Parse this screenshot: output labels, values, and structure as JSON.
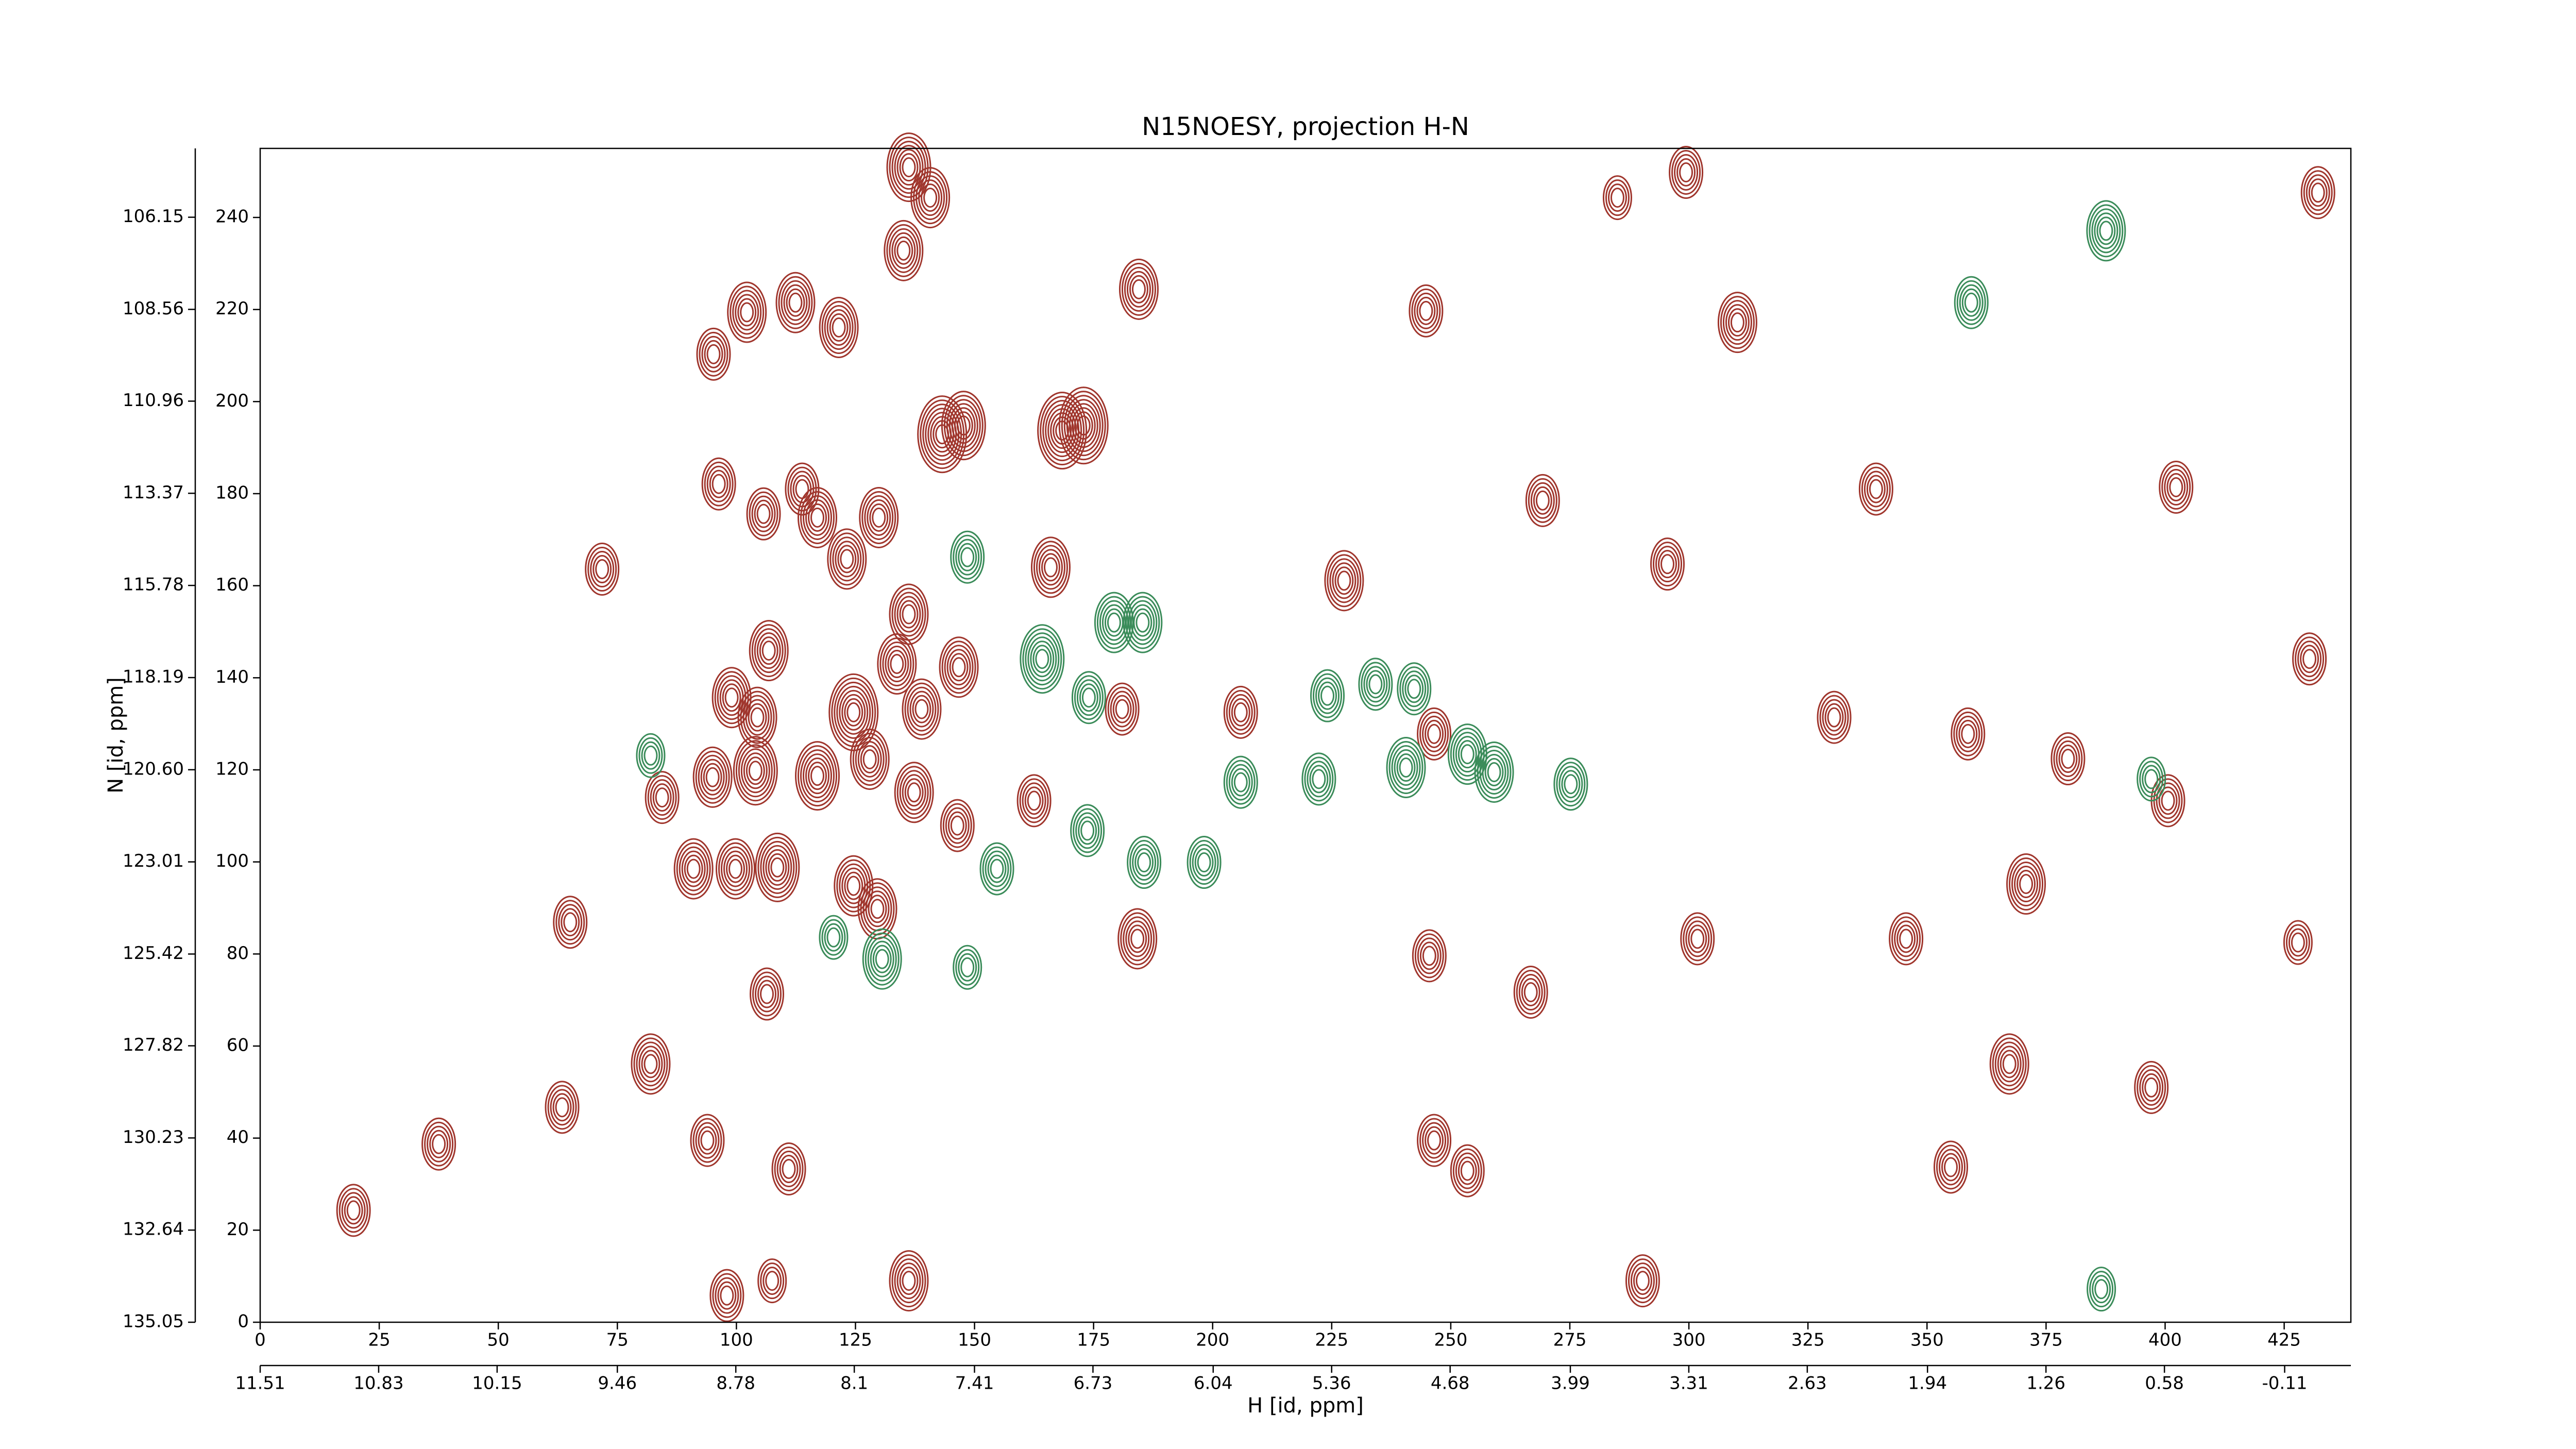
{
  "chart_data": {
    "type": "contour",
    "title": "N15NOESY, projection H-N",
    "xlabel": "H [id, ppm]",
    "ylabel": "N [id, ppm]",
    "xlim": [
      0,
      439
    ],
    "xticks": [
      0,
      25,
      50,
      75,
      100,
      125,
      150,
      175,
      200,
      225,
      250,
      275,
      300,
      325,
      350,
      375,
      400,
      425
    ],
    "x2lim": [
      11.51,
      -0.49
    ],
    "x2ticks": [
      11.51,
      10.83,
      10.15,
      9.46,
      8.78,
      8.1,
      7.41,
      6.73,
      6.04,
      5.36,
      4.68,
      3.99,
      3.31,
      2.63,
      1.94,
      1.26,
      0.58,
      -0.11
    ],
    "ylim": [
      0,
      255
    ],
    "yticks": [
      0,
      20,
      40,
      60,
      80,
      100,
      120,
      140,
      160,
      180,
      200,
      220,
      240
    ],
    "y2lim": [
      135.05,
      104.35
    ],
    "y2ticks": [
      135.05,
      132.64,
      130.23,
      127.82,
      125.42,
      123.01,
      {
        "value": 120.6,
        "label": "120.60"
      },
      118.19,
      115.78,
      113.37,
      110.96,
      108.56,
      106.15
    ],
    "series": [
      {
        "color": "#a0362d",
        "x": [
          136.2,
          140.7,
          135.1,
          102.2,
          112.4,
          121.5,
          184.5,
          95.2,
          143.2,
          147.7,
          168.4,
          172.9,
          96.3,
          105.7,
          113.8,
          71.8,
          123.2,
          117,
          129.9,
          136.2,
          106.8,
          99,
          104.4,
          124.6,
          133.7,
          146.7,
          138.9,
          95,
          104,
          84.4,
          117,
          128,
          137.3,
          146.4,
          91,
          99.8,
          108.6,
          124.6,
          129.6,
          162.5,
          166,
          181,
          184.2,
          205.9,
          227.6,
          65.1,
          106.4,
          82,
          63.4,
          37.5,
          93.9,
          111,
          19.6,
          98,
          107.5,
          136.2,
          245.5,
          266.8,
          246.5,
          253.5,
          301.8,
          285,
          310.2,
          339.3,
          402.3,
          370.8,
          345.6,
          355,
          367.3,
          432.1,
          299.4,
          269.3,
          295.5,
          358.6,
          330.5,
          379.6,
          400.6,
          430.3,
          427.9,
          246.5,
          244.8,
          397.1,
          290.3
        ],
        "values": [
          250.9,
          244.3,
          232.8,
          219.4,
          221.5,
          216.1,
          224.4,
          210.3,
          192.9,
          194.8,
          193.7,
          194.8,
          182.1,
          175.6,
          181,
          163.6,
          165.8,
          174.8,
          174.8,
          153.8,
          145.9,
          135.7,
          131.4,
          132.5,
          143,
          142.3,
          133.2,
          118.4,
          119.8,
          114,
          118.7,
          122.3,
          115.1,
          107.9,
          98.5,
          98.5,
          98.8,
          94.8,
          89.8,
          113.3,
          164,
          133.2,
          83.3,
          132.5,
          161.1,
          86.9,
          71.3,
          56.1,
          46.7,
          38.7,
          39.5,
          33.3,
          24.3,
          5.8,
          9,
          9,
          79.6,
          71.7,
          39.5,
          32.9,
          83.3,
          244.3,
          217.2,
          181,
          181.4,
          95.2,
          83.3,
          33.7,
          56.1,
          245.4,
          249.8,
          178.5,
          164.7,
          127.8,
          131.4,
          122.4,
          113.3,
          144.1,
          82.5,
          127.8,
          219.7,
          51,
          9
        ],
        "sizes": [
          7,
          6,
          6,
          6,
          6,
          6,
          6,
          5,
          8,
          7,
          8,
          8,
          5,
          5,
          5,
          5,
          6,
          6,
          6,
          6,
          6,
          6,
          6,
          8,
          6,
          6,
          6,
          6,
          7,
          5,
          7,
          6,
          6,
          5,
          6,
          6,
          7,
          6,
          6,
          5,
          6,
          5,
          6,
          5,
          6,
          5,
          5,
          6,
          5,
          5,
          5,
          5,
          5,
          5,
          4,
          6,
          5,
          5,
          5,
          5,
          5,
          4,
          6,
          5,
          5,
          6,
          5,
          5,
          6,
          5,
          5,
          5,
          5,
          5,
          5,
          5,
          5,
          5,
          4,
          5,
          5,
          5,
          5
        ]
      },
      {
        "color": "#3b8c5a",
        "x": [
          387.6,
          359.3,
          179.3,
          185.3,
          164.2,
          174,
          224.1,
          234.2,
          242.3,
          205.9,
          222.3,
          240.6,
          253.5,
          259.1,
          275.2,
          82,
          148.5,
          173.7,
          154.7,
          185.6,
          198.2,
          130.6,
          148.5,
          120.4,
          397.1,
          386.6
        ],
        "values": [
          237.1,
          221.5,
          152,
          152,
          144.1,
          135.7,
          136.1,
          138.6,
          137.6,
          117.3,
          118,
          120.5,
          123.4,
          119.5,
          116.9,
          123.1,
          166.2,
          106.8,
          98.5,
          99.9,
          99.9,
          78.9,
          77.1,
          83.6,
          118,
          7.2
        ],
        "sizes": [
          6,
          5,
          6,
          6,
          7,
          5,
          5,
          5,
          5,
          5,
          5,
          6,
          6,
          6,
          5,
          4,
          5,
          5,
          5,
          5,
          5,
          6,
          4,
          4,
          4,
          4
        ]
      }
    ]
  }
}
